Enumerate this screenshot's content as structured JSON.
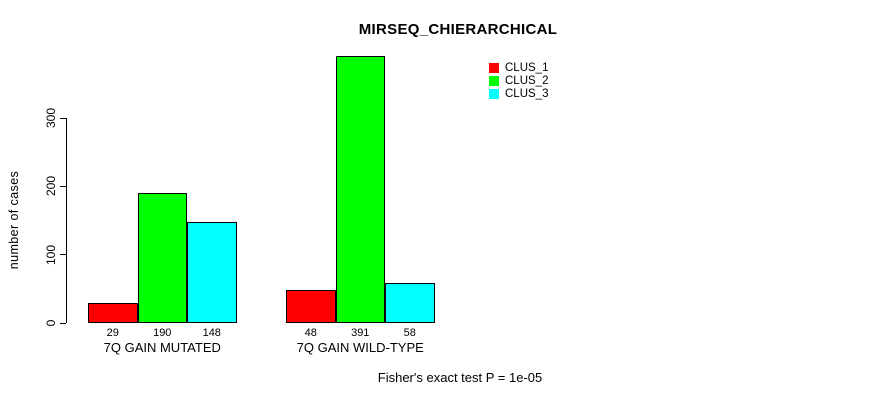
{
  "chart_data": {
    "type": "bar",
    "title": "MIRSEQ_CHIERARCHICAL",
    "xlabel": "",
    "ylabel": "number of cases",
    "categories": [
      "7Q GAIN MUTATED",
      "7Q GAIN WILD-TYPE"
    ],
    "series": [
      {
        "name": "CLUS_1",
        "color": "#ff0000",
        "values": [
          29,
          48
        ]
      },
      {
        "name": "CLUS_2",
        "color": "#00ff00",
        "values": [
          190,
          391
        ]
      },
      {
        "name": "CLUS_3",
        "color": "#00ffff",
        "values": [
          148,
          58
        ]
      }
    ],
    "yticks": [
      0,
      100,
      200,
      300
    ],
    "ylim": [
      0,
      391
    ],
    "grid": false,
    "legend_position": "top-right",
    "bar_value_labels_shown": true,
    "annotation": "Fisher's exact test P = 1e-05"
  }
}
